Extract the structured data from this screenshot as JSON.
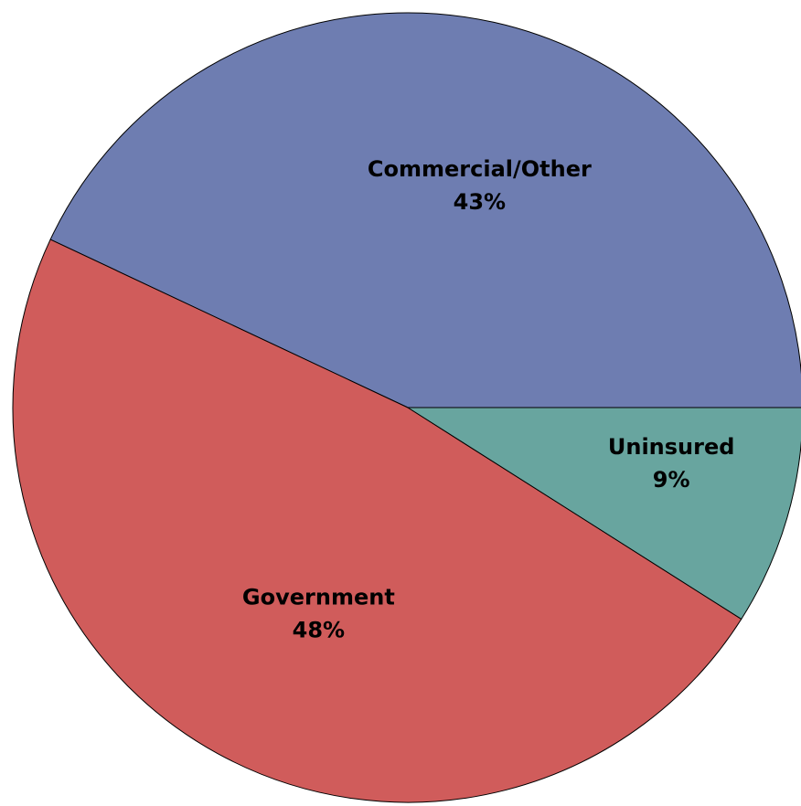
{
  "chart_data": {
    "type": "pie",
    "title": "",
    "direction": "counterclockwise",
    "legend": "none",
    "slices": [
      {
        "name": "Commercial/Other",
        "value": 43,
        "pct_label": "43%",
        "color": "#6e7db1"
      },
      {
        "name": "Government",
        "value": 48,
        "pct_label": "48%",
        "color": "#d05c5b"
      },
      {
        "name": "Uninsured",
        "value": 9,
        "pct_label": "9%",
        "color": "#68a59f"
      }
    ]
  }
}
